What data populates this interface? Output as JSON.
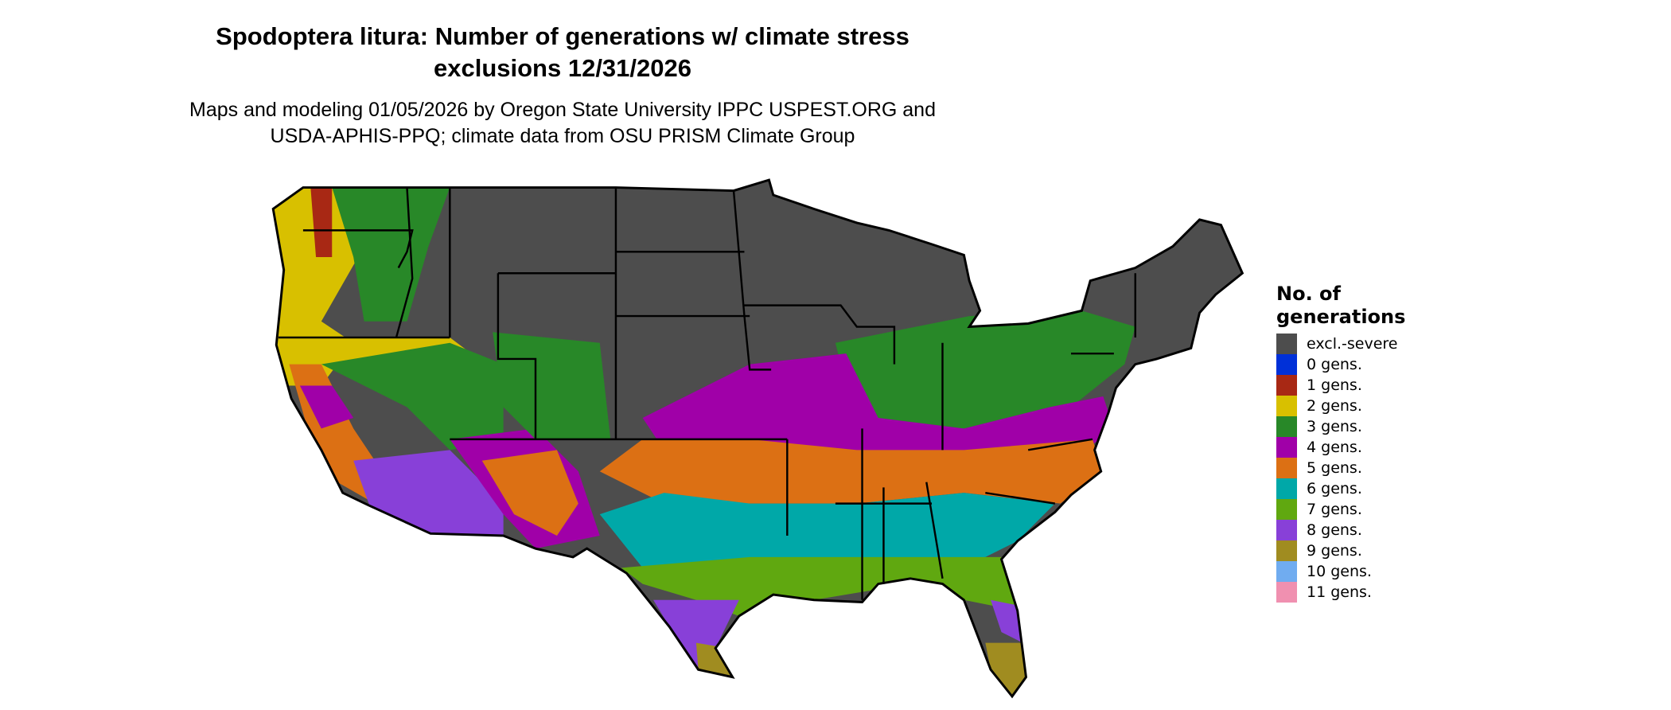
{
  "title_line1": "Spodoptera litura: Number of generations w/ climate stress",
  "title_line2": "exclusions 12/31/2026",
  "subtitle_line1": "Maps and modeling 01/05/2026 by Oregon State University IPPC USPEST.ORG and",
  "subtitle_line2": "USDA-APHIS-PPQ; climate data from OSU PRISM Climate Group",
  "legend": {
    "title_line1": "No. of",
    "title_line2": "generations",
    "items": [
      {
        "label": "excl.-severe",
        "color": "#4d4d4d"
      },
      {
        "label": "0 gens.",
        "color": "#0030d8"
      },
      {
        "label": "1 gens.",
        "color": "#a82814"
      },
      {
        "label": "2 gens.",
        "color": "#d8c000"
      },
      {
        "label": "3 gens.",
        "color": "#288828"
      },
      {
        "label": "4 gens.",
        "color": "#a000a8"
      },
      {
        "label": "5 gens.",
        "color": "#dc7014"
      },
      {
        "label": "6 gens.",
        "color": "#00a8a8"
      },
      {
        "label": "7 gens.",
        "color": "#60a810"
      },
      {
        "label": "8 gens.",
        "color": "#8840d8"
      },
      {
        "label": "9 gens.",
        "color": "#a08c20"
      },
      {
        "label": "10 gens.",
        "color": "#70acf0"
      },
      {
        "label": "11 gens.",
        "color": "#f090b0"
      }
    ]
  }
}
